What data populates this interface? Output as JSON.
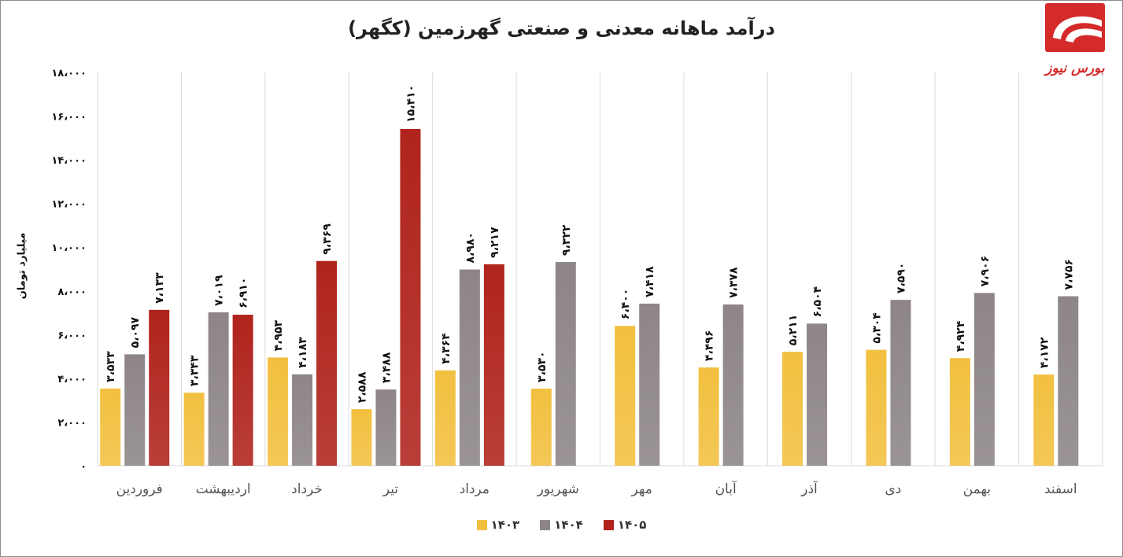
{
  "chart_data": {
    "type": "bar",
    "title": "درآمد ماهانه معدنی و صنعتی گهرزمین (کگهر)",
    "ylabel": "میلیارد تومان",
    "ylim": [
      0,
      18000
    ],
    "yticks": [
      0,
      2000,
      4000,
      6000,
      8000,
      10000,
      12000,
      14000,
      16000,
      18000
    ],
    "ytick_labels": [
      "۰",
      "۲،۰۰۰",
      "۴،۰۰۰",
      "۶،۰۰۰",
      "۸،۰۰۰",
      "۱۰،۰۰۰",
      "۱۲،۰۰۰",
      "۱۴،۰۰۰",
      "۱۶،۰۰۰",
      "۱۸،۰۰۰"
    ],
    "grid": "vertical separators between categories",
    "legend_position": "bottom",
    "categories": [
      "فروردین",
      "اردیبهشت",
      "خرداد",
      "تیر",
      "مرداد",
      "شهریور",
      "مهر",
      "آبان",
      "آذر",
      "دی",
      "بهمن",
      "اسفند"
    ],
    "series": [
      {
        "name": "۱۴۰۳",
        "color": "#f2c040",
        "values": [
          3533,
          3343,
          4953,
          2588,
          4364,
          3530,
          6400,
          4496,
          5211,
          5304,
          4924,
          4172
        ],
        "labels": [
          "۳،۵۳۳",
          "۳،۳۴۳",
          "۴،۹۵۳",
          "۲،۵۸۸",
          "۴،۳۶۴",
          "۳،۵۳۰",
          "۶،۴۰۰",
          "۴،۴۹۶",
          "۵،۲۱۱",
          "۵،۳۰۴",
          "۴،۹۲۴",
          "۴،۱۷۲"
        ]
      },
      {
        "name": "۱۴۰۴",
        "color": "#8d8587",
        "values": [
          5097,
          7019,
          4183,
          3488,
          8980,
          9322,
          7418,
          7378,
          6504,
          7590,
          7906,
          7756
        ],
        "labels": [
          "۵،۰۹۷",
          "۷،۰۱۹",
          "۴،۱۸۳",
          "۳،۴۸۸",
          "۸،۹۸۰",
          "۹،۳۲۲",
          "۷،۴۱۸",
          "۷،۳۷۸",
          "۶،۵۰۴",
          "۷،۵۹۰",
          "۷،۹۰۶",
          "۷،۷۵۶"
        ]
      },
      {
        "name": "۱۴۰۵",
        "color": "#b0241d",
        "values": [
          7133,
          6910,
          9369,
          15410,
          9217,
          null,
          null,
          null,
          null,
          null,
          null,
          null
        ],
        "labels": [
          "۷،۱۳۳",
          "۶،۹۱۰",
          "۹،۳۶۹",
          "۱۵،۴۱۰",
          "۹،۲۱۷",
          null,
          null,
          null,
          null,
          null,
          null,
          null
        ]
      }
    ]
  },
  "logo": {
    "text": "بورس نیوز",
    "color": "#d42a2a"
  }
}
